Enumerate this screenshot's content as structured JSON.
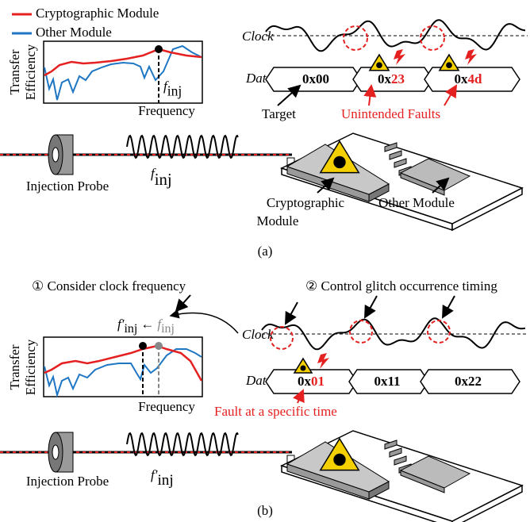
{
  "panel_a": {
    "legend": [
      "Cryptographic Module",
      "Other Module"
    ],
    "plot": {
      "y_label": [
        "Transfer",
        "Efficiency"
      ],
      "x_label": "Frequency",
      "marker": {
        "base": "f",
        "sub": "inj"
      }
    },
    "timing": {
      "clock_label": "Clock",
      "data_label": "Data",
      "words": [
        {
          "prefix": "0x00"
        },
        {
          "prefix": "0x",
          "fault": "23"
        },
        {
          "prefix": "0x",
          "fault": "4d"
        }
      ],
      "target": "Target",
      "faults": "Unintended Faults"
    },
    "setup": {
      "probe": "Injection Probe",
      "wave": {
        "base": "f",
        "sub": "inj"
      },
      "crypto": [
        "Cryptographic",
        "Module"
      ],
      "other": "Other Module"
    },
    "caption": "(a)"
  },
  "panel_b": {
    "step1": "① Consider clock frequency",
    "step2": "② Control glitch occurrence timing",
    "shift": {
      "new": {
        "base": "f′",
        "sub": "inj"
      },
      "arrow": "←",
      "old": {
        "base": "f",
        "sub": "inj"
      }
    },
    "plot": {
      "y_label": [
        "Transfer",
        "Efficiency"
      ],
      "x_label": "Frequency"
    },
    "timing": {
      "clock_label": "Clock",
      "data_label": "Data",
      "words": [
        {
          "prefix": "0x",
          "fault": "01"
        },
        {
          "prefix": "0x11"
        },
        {
          "prefix": "0x22"
        }
      ],
      "fault_note": "Fault at a specific time"
    },
    "setup": {
      "probe": "Injection Probe",
      "wave": {
        "base": "f′",
        "sub": "inj"
      }
    },
    "caption": "(b)"
  }
}
